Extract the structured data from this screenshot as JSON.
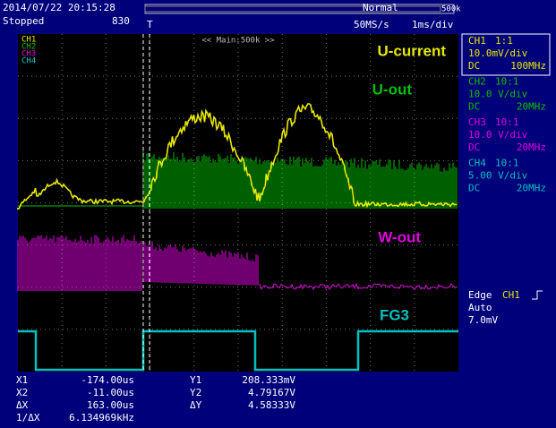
{
  "header": {
    "datetime": "2014/07/22 20:15:28",
    "status": "Stopped",
    "count": "830",
    "trigger_mark": "T",
    "record": "500k",
    "mode": "Normal",
    "sample_rate": "50MS/s",
    "timebase": "1ms/div"
  },
  "screen": {
    "channel_tags": [
      "CH1",
      "CH2",
      "CH3",
      "CH4"
    ],
    "zoom": "<< Main:500k >>",
    "labels": [
      "U-current",
      "U-out",
      "W-out",
      "FG3"
    ]
  },
  "channels": [
    {
      "name": "CH1",
      "probe": "1:1",
      "scale": "10.0mV/div",
      "coupling": "DC",
      "bandwidth": "100MHz"
    },
    {
      "name": "CH2",
      "probe": "10:1",
      "scale": "10.0 V/div",
      "coupling": "DC",
      "bandwidth": "20MHz"
    },
    {
      "name": "CH3",
      "probe": "10:1",
      "scale": "10.0 V/div",
      "coupling": "DC",
      "bandwidth": "20MHz"
    },
    {
      "name": "CH4",
      "probe": "10:1",
      "scale": "5.00 V/div",
      "coupling": "DC",
      "bandwidth": "20MHz"
    }
  ],
  "trigger": {
    "type": "Edge",
    "source": "CH1",
    "mode": "Auto",
    "level": "7.0mV"
  },
  "cursors": {
    "rows": [
      [
        "X1",
        "-174.00us",
        "Y1",
        "208.333mV"
      ],
      [
        "X2",
        "-11.00us",
        "Y2",
        "4.79167V"
      ],
      [
        "ΔX",
        "163.00us",
        "ΔY",
        "4.58333V"
      ],
      [
        "1/ΔX",
        "6.134969kHz"
      ]
    ]
  }
}
